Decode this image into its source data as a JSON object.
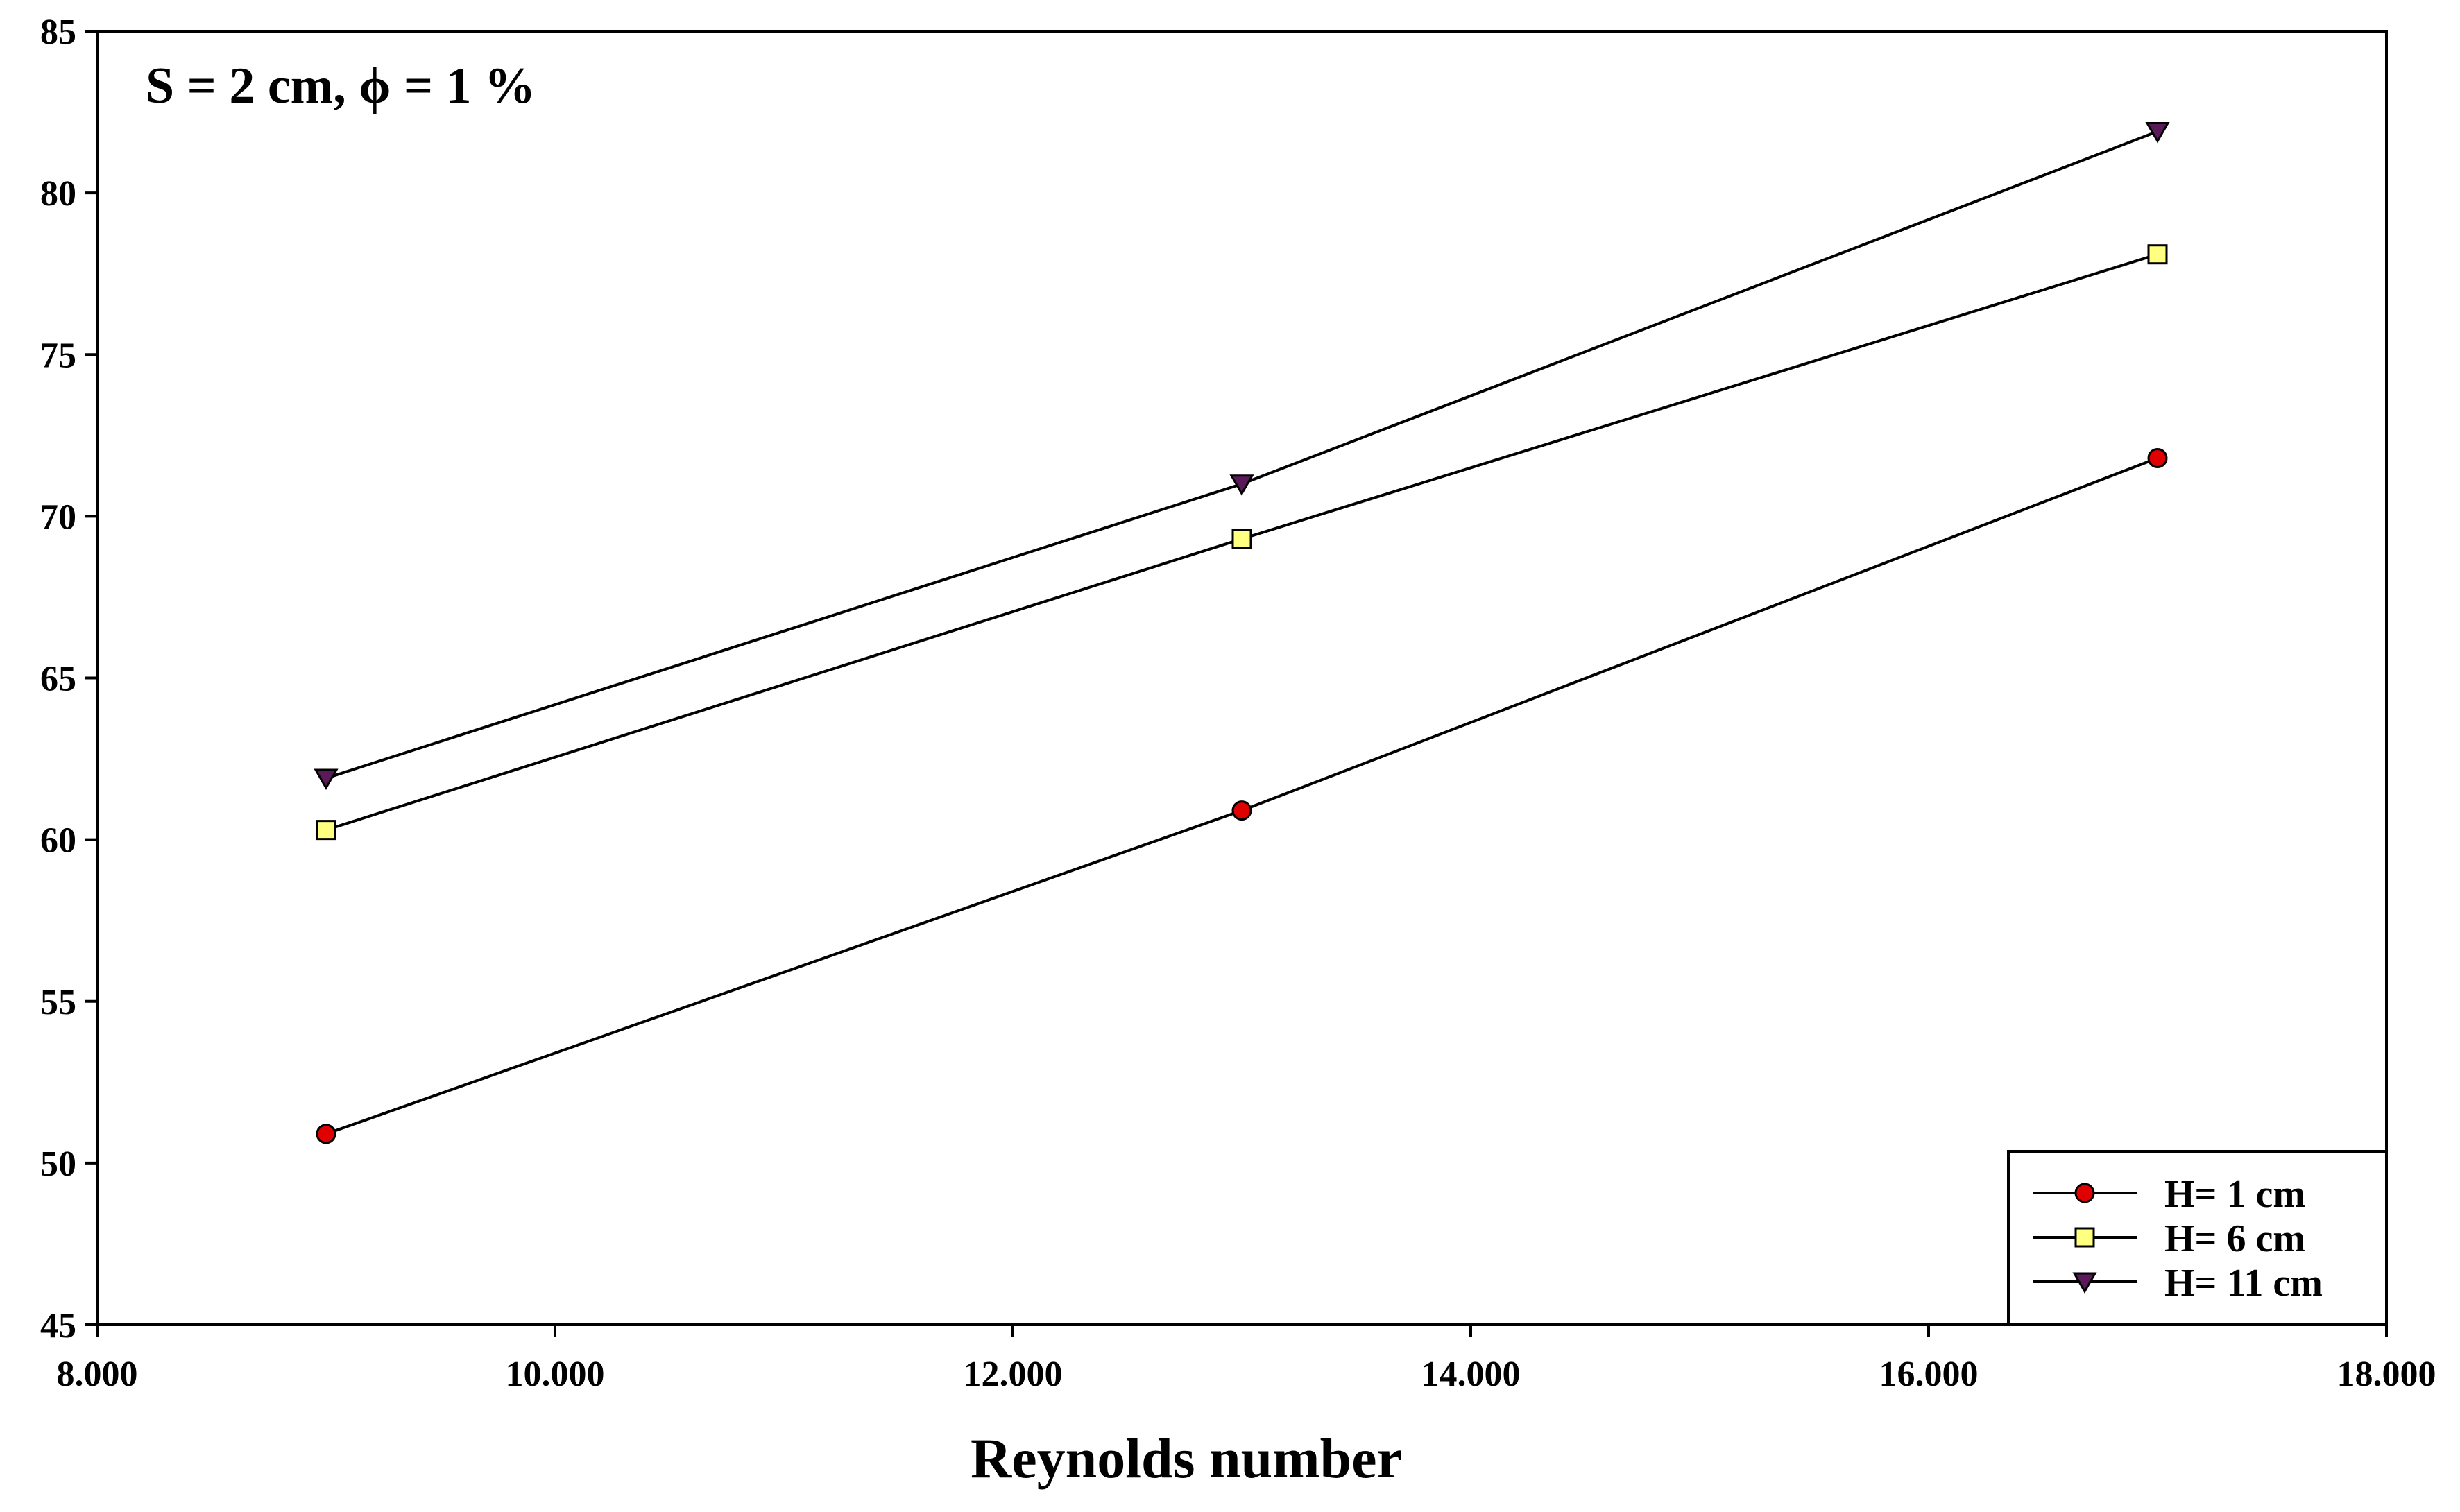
{
  "chart_data": {
    "type": "line",
    "title": "",
    "annotation": "S = 2 cm, ϕ = 1 %",
    "xlabel": "Reynolds number",
    "ylabel": "",
    "xlim": [
      8000,
      18000
    ],
    "ylim": [
      45,
      85
    ],
    "x_ticks": [
      8000,
      10000,
      12000,
      14000,
      16000,
      18000
    ],
    "x_tick_labels": [
      "8.000",
      "10.000",
      "12.000",
      "14.000",
      "16.000",
      "18.000"
    ],
    "y_ticks": [
      45,
      50,
      55,
      60,
      65,
      70,
      75,
      80,
      85
    ],
    "y_tick_labels": [
      "45",
      "50",
      "55",
      "60",
      "65",
      "70",
      "75",
      "80",
      "85"
    ],
    "grid": false,
    "legend_position": "bottom-right",
    "x": [
      9000,
      13000,
      17000
    ],
    "series": [
      {
        "name": "H= 1 cm",
        "values": [
          50.9,
          60.9,
          71.8
        ],
        "marker": "circle",
        "marker_color": "#e00000"
      },
      {
        "name": "H= 6 cm",
        "values": [
          60.3,
          69.3,
          78.1
        ],
        "marker": "square",
        "marker_color": "#ffff80"
      },
      {
        "name": "H= 11 cm",
        "values": [
          61.9,
          71.0,
          81.9
        ],
        "marker": "triangle-down",
        "marker_color": "#5a1a5a"
      }
    ],
    "line_color": "#000000"
  }
}
